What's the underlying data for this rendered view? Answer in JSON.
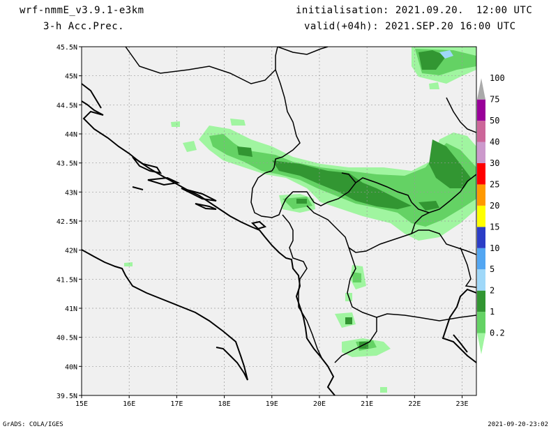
{
  "header": {
    "model": "wrf-nmmE_v3.9.1-e3km",
    "field": "3-h Acc.Prec.",
    "init": "initialisation: 2021.09.20.  12:00 UTC",
    "valid": "valid(+04h): 2021.SEP.20 16:00 UTC"
  },
  "footer": {
    "credit": "GrADS: COLA/IGES",
    "timestamp": "2021-09-20-23:02"
  },
  "map": {
    "lon_labels": [
      "15E",
      "16E",
      "17E",
      "18E",
      "19E",
      "20E",
      "21E",
      "22E",
      "23E"
    ],
    "lat_labels": [
      "45.5N",
      "45N",
      "44.5N",
      "44N",
      "43.5N",
      "43N",
      "42.5N",
      "42N",
      "41.5N",
      "41N",
      "40.5N",
      "40N",
      "39.5N"
    ],
    "lon_range": [
      15,
      23.3
    ],
    "lat_range": [
      39.5,
      45.5
    ],
    "grid": true,
    "background_color": "#f0f0f0",
    "border_color": "#000000"
  },
  "colorbar": {
    "levels": [
      "0.2",
      "1",
      "2",
      "5",
      "10",
      "15",
      "20",
      "25",
      "30",
      "40",
      "50",
      "75",
      "100"
    ],
    "colors": [
      "#a0f5a0",
      "#64d264",
      "#329632",
      "#9fd8f9",
      "#52a6f2",
      "#2b3dc6",
      "#ffff00",
      "#ff9900",
      "#ff0000",
      "#cc99cc",
      "#cc6699",
      "#990099",
      "#aaaaaa"
    ]
  },
  "precip_colors": {
    "light": "#a0f5a0",
    "medium": "#64d264",
    "heavy": "#329632",
    "blue": "#9fd8f9"
  }
}
